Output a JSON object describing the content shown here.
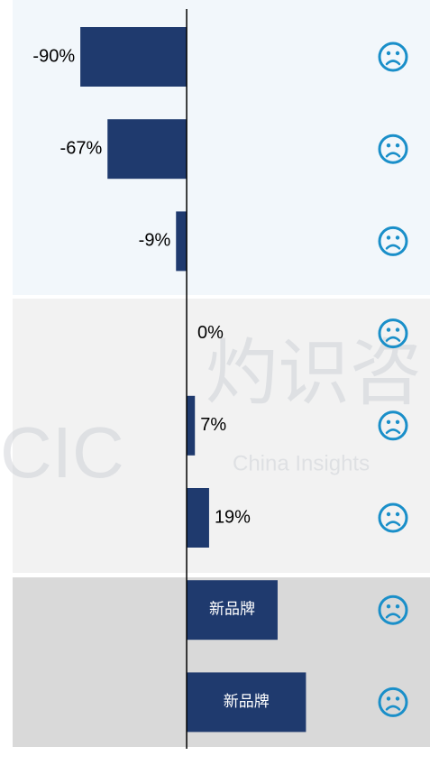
{
  "chart_data": {
    "type": "hbar",
    "categories": [
      null,
      null,
      null,
      null,
      null,
      null,
      null,
      null
    ],
    "values": [
      -90,
      -67,
      -9,
      0,
      7,
      19,
      77,
      101
    ],
    "value_labels": [
      "-90%",
      "-67%",
      "-9%",
      "0%",
      "7%",
      "19%",
      null,
      null
    ],
    "inner_labels": [
      null,
      null,
      null,
      null,
      null,
      null,
      "新品牌",
      "新品牌"
    ],
    "color": "#1f3a6e",
    "xlim": [
      -158,
      206
    ],
    "watermark": [
      "CIC",
      "China Insights",
      "灼识咨"
    ]
  }
}
